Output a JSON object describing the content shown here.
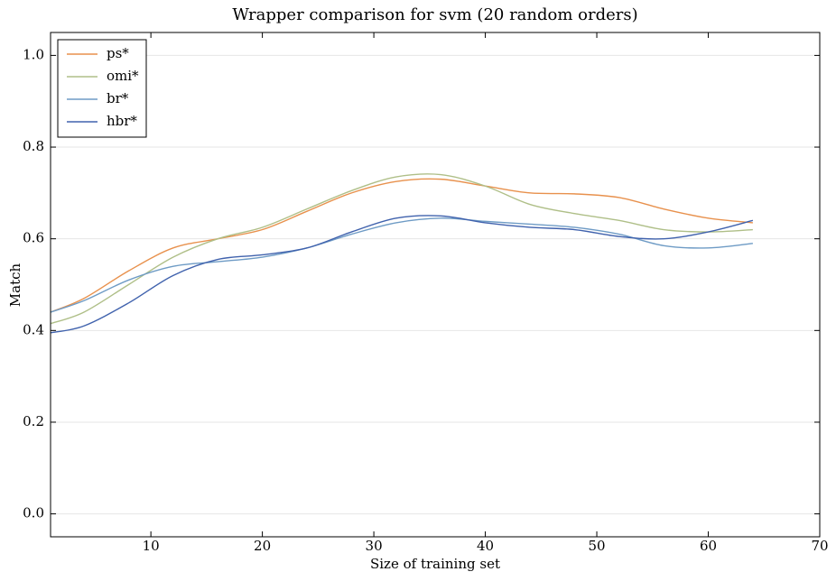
{
  "chart_data": {
    "type": "line",
    "title": "Wrapper comparison for svm (20 random orders)",
    "x_label": "Size of training set",
    "y_label": "Match",
    "x": [
      1,
      4,
      8,
      12,
      16,
      20,
      24,
      28,
      32,
      36,
      40,
      44,
      48,
      52,
      56,
      60,
      64
    ],
    "series": [
      {
        "name": "ps*",
        "color": "#e8914d",
        "values": [
          0.44,
          0.47,
          0.53,
          0.58,
          0.6,
          0.62,
          0.66,
          0.7,
          0.725,
          0.73,
          0.715,
          0.7,
          0.698,
          0.69,
          0.665,
          0.645,
          0.635
        ]
      },
      {
        "name": "omi*",
        "color": "#afbf88",
        "values": [
          0.415,
          0.44,
          0.5,
          0.56,
          0.6,
          0.625,
          0.665,
          0.705,
          0.735,
          0.74,
          0.715,
          0.675,
          0.655,
          0.64,
          0.62,
          0.615,
          0.62
        ]
      },
      {
        "name": "br*",
        "color": "#6e9bc5",
        "values": [
          0.44,
          0.465,
          0.51,
          0.54,
          0.55,
          0.56,
          0.58,
          0.61,
          0.635,
          0.645,
          0.638,
          0.632,
          0.625,
          0.61,
          0.585,
          0.58,
          0.59
        ]
      },
      {
        "name": "hbr*",
        "color": "#4062ad",
        "values": [
          0.395,
          0.41,
          0.46,
          0.52,
          0.555,
          0.565,
          0.58,
          0.615,
          0.645,
          0.65,
          0.635,
          0.625,
          0.62,
          0.605,
          0.6,
          0.615,
          0.64
        ]
      }
    ],
    "xlim": [
      1,
      70
    ],
    "xticks": [
      10,
      20,
      30,
      40,
      50,
      60,
      70
    ],
    "ylim": [
      -0.05,
      1.05
    ],
    "yticks": [
      {
        "value": 0,
        "label": "0.0"
      },
      0.2,
      0.4,
      0.6,
      0.8,
      {
        "value": 1,
        "label": "1.0"
      }
    ],
    "grid": true,
    "legend": "upper-left"
  }
}
